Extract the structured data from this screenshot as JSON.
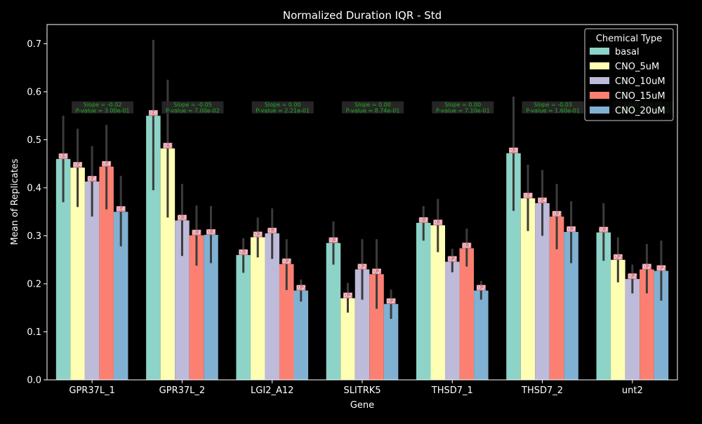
{
  "chart_data": {
    "type": "bar",
    "title": "Normalized Duration IQR - Std",
    "xlabel": "Gene",
    "ylabel": "Mean of Replicates",
    "ylim": [
      0,
      0.74
    ],
    "yticks": [
      0.0,
      0.1,
      0.2,
      0.3,
      0.4,
      0.5,
      0.6,
      0.7
    ],
    "ytick_labels": [
      "0.0",
      "0.1",
      "0.2",
      "0.3",
      "0.4",
      "0.5",
      "0.6",
      "0.7"
    ],
    "grid": false,
    "categories": [
      "GPR37L_1",
      "GPR37L_2",
      "LGI2_A12",
      "SLITRK5",
      "THSD7_1",
      "THSD7_2",
      "unt2"
    ],
    "legend": {
      "title": "Chemical Type",
      "position": "top-right"
    },
    "series": [
      {
        "name": "basal",
        "color": "#8dd3c7",
        "values": [
          0.46,
          0.55,
          0.26,
          0.285,
          0.327,
          0.472,
          0.307
        ],
        "ci_low": [
          0.37,
          0.395,
          0.223,
          0.24,
          0.29,
          0.352,
          0.248
        ],
        "ci_high": [
          0.55,
          0.708,
          0.295,
          0.33,
          0.362,
          0.59,
          0.368
        ],
        "value_labels": [
          "0.5",
          "0.6",
          "0.3",
          "0.3",
          "0.3",
          "0.5",
          "0.3"
        ]
      },
      {
        "name": "CNO_5uM",
        "color": "#ffffb3",
        "values": [
          0.442,
          0.482,
          0.297,
          0.17,
          0.322,
          0.378,
          0.25
        ],
        "ci_low": [
          0.36,
          0.338,
          0.255,
          0.14,
          0.266,
          0.31,
          0.203
        ],
        "ci_high": [
          0.523,
          0.625,
          0.338,
          0.202,
          0.377,
          0.448,
          0.297
        ],
        "value_labels": [
          "0.4",
          "0.5",
          "0.3",
          "0.2",
          "0.3",
          "0.4",
          "0.2"
        ]
      },
      {
        "name": "CNO_10uM",
        "color": "#bebada",
        "values": [
          0.413,
          0.332,
          0.305,
          0.23,
          0.246,
          0.368,
          0.21
        ],
        "ci_low": [
          0.34,
          0.258,
          0.252,
          0.167,
          0.224,
          0.3,
          0.18
        ],
        "ci_high": [
          0.487,
          0.408,
          0.357,
          0.293,
          0.273,
          0.437,
          0.24
        ],
        "value_labels": [
          "0.4",
          "0.3",
          "0.3",
          "0.2",
          "0.2",
          "0.4",
          "0.2"
        ]
      },
      {
        "name": "CNO_15uM",
        "color": "#fb8072",
        "values": [
          0.444,
          0.301,
          0.241,
          0.22,
          0.274,
          0.34,
          0.23
        ],
        "ci_low": [
          0.355,
          0.238,
          0.187,
          0.148,
          0.236,
          0.272,
          0.18
        ],
        "ci_high": [
          0.531,
          0.363,
          0.293,
          0.293,
          0.315,
          0.408,
          0.283
        ],
        "value_labels": [
          "0.4",
          "0.3",
          "0.2",
          "0.2",
          "0.3",
          "0.3",
          "0.2"
        ]
      },
      {
        "name": "CNO_20uM",
        "color": "#80b1d3",
        "values": [
          0.35,
          0.302,
          0.186,
          0.158,
          0.186,
          0.308,
          0.227
        ],
        "ci_low": [
          0.278,
          0.243,
          0.163,
          0.127,
          0.167,
          0.243,
          0.165
        ],
        "ci_high": [
          0.425,
          0.362,
          0.209,
          0.188,
          0.206,
          0.372,
          0.29
        ],
        "value_labels": [
          "0.4",
          "0.3",
          "0.2",
          "0.2",
          "0.2",
          "0.3",
          "0.2"
        ]
      }
    ],
    "annotations": [
      {
        "category": "GPR37L_1",
        "slope": "Slope = -0.02",
        "pvalue": "P-value = 3.00e-01"
      },
      {
        "category": "GPR37L_2",
        "slope": "Slope = -0.05",
        "pvalue": "P-value = 7.00e-02"
      },
      {
        "category": "LGI2_A12",
        "slope": "Slope = 0.00",
        "pvalue": "P-value = 2.21e-01"
      },
      {
        "category": "SLITRK5",
        "slope": "Slope = 0.00",
        "pvalue": "P-value = 8.74e-01"
      },
      {
        "category": "THSD7_1",
        "slope": "Slope = 0.00",
        "pvalue": "P-value = 7.10e-01"
      },
      {
        "category": "THSD7_2",
        "slope": "Slope = -0.03",
        "pvalue": "P-value = 1.60e-01"
      },
      {
        "category": "unt2",
        "slope": "Slope = -0.01",
        "pvalue": "P-value = 3.10e-01"
      }
    ]
  }
}
